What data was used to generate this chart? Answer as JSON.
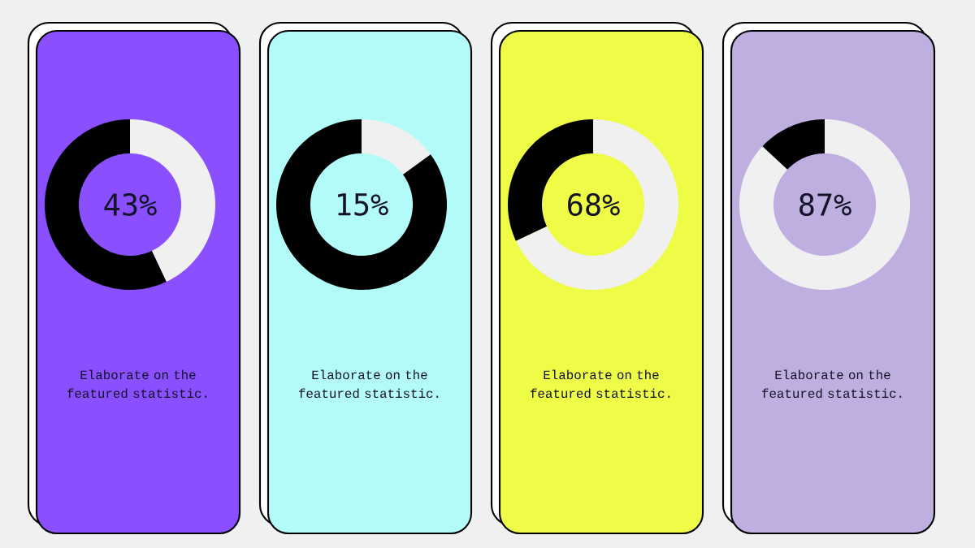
{
  "chart_data": [
    {
      "type": "donut",
      "categories": [
        null,
        null
      ],
      "values": [
        43,
        57
      ],
      "colors": [
        "#f0f0f0",
        "#000000"
      ],
      "annotations": [
        "43%",
        "Elaborate on the featured statistic."
      ]
    },
    {
      "type": "donut",
      "categories": [
        null,
        null
      ],
      "values": [
        15,
        85
      ],
      "colors": [
        "#f0f0f0",
        "#000000"
      ],
      "annotations": [
        "15%",
        "Elaborate on the featured statistic."
      ]
    },
    {
      "type": "donut",
      "categories": [
        null,
        null
      ],
      "values": [
        68,
        32
      ],
      "colors": [
        "#f0f0f0",
        "#000000"
      ],
      "annotations": [
        "68%",
        "Elaborate on the featured statistic."
      ]
    },
    {
      "type": "donut",
      "categories": [
        null,
        null
      ],
      "values": [
        87,
        13
      ],
      "colors": [
        "#f0f0f0",
        "#000000"
      ],
      "annotations": [
        "87%",
        "Elaborate on the featured statistic."
      ]
    }
  ]
}
